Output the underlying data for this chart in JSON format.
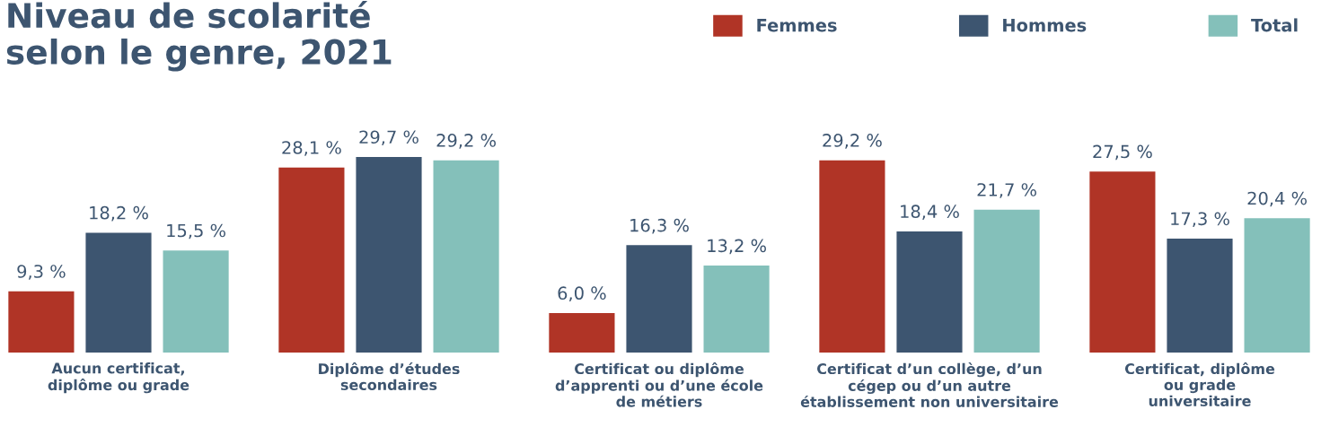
{
  "chart_data": {
    "type": "bar",
    "title": "Niveau de scolarité\nselon le genre, 2021",
    "categories": [
      "Aucun certificat,\ndiplôme ou grade",
      "Diplôme d’études\nsecondaires",
      "Certificat ou diplôme\nd’apprenti ou d’une école\nde métiers",
      "Certificat d’un collège, d’un\ncégep ou d’un autre\nétablissement non universitaire",
      "Certificat, diplôme\nou grade\nuniversitaire"
    ],
    "series": [
      {
        "name": "Femmes",
        "color": "#b03426",
        "values": [
          9.3,
          28.1,
          6.0,
          29.2,
          27.5
        ],
        "value_labels": [
          "9,3 %",
          "28,1 %",
          "6,0 %",
          "29,2 %",
          "27,5 %"
        ]
      },
      {
        "name": "Hommes",
        "color": "#3d5570",
        "values": [
          18.2,
          29.7,
          16.3,
          18.4,
          17.3
        ],
        "value_labels": [
          "18,2 %",
          "29,7 %",
          "16,3 %",
          "18,4 %",
          "17,3 %"
        ]
      },
      {
        "name": "Total",
        "color": "#84c0ba",
        "values": [
          15.5,
          29.2,
          13.2,
          21.7,
          20.4
        ],
        "value_labels": [
          "15,5 %",
          "29,2 %",
          "13,2 %",
          "21,7 %",
          "20,4 %"
        ]
      }
    ],
    "legend": "top right",
    "tick_labels": "x"
  }
}
